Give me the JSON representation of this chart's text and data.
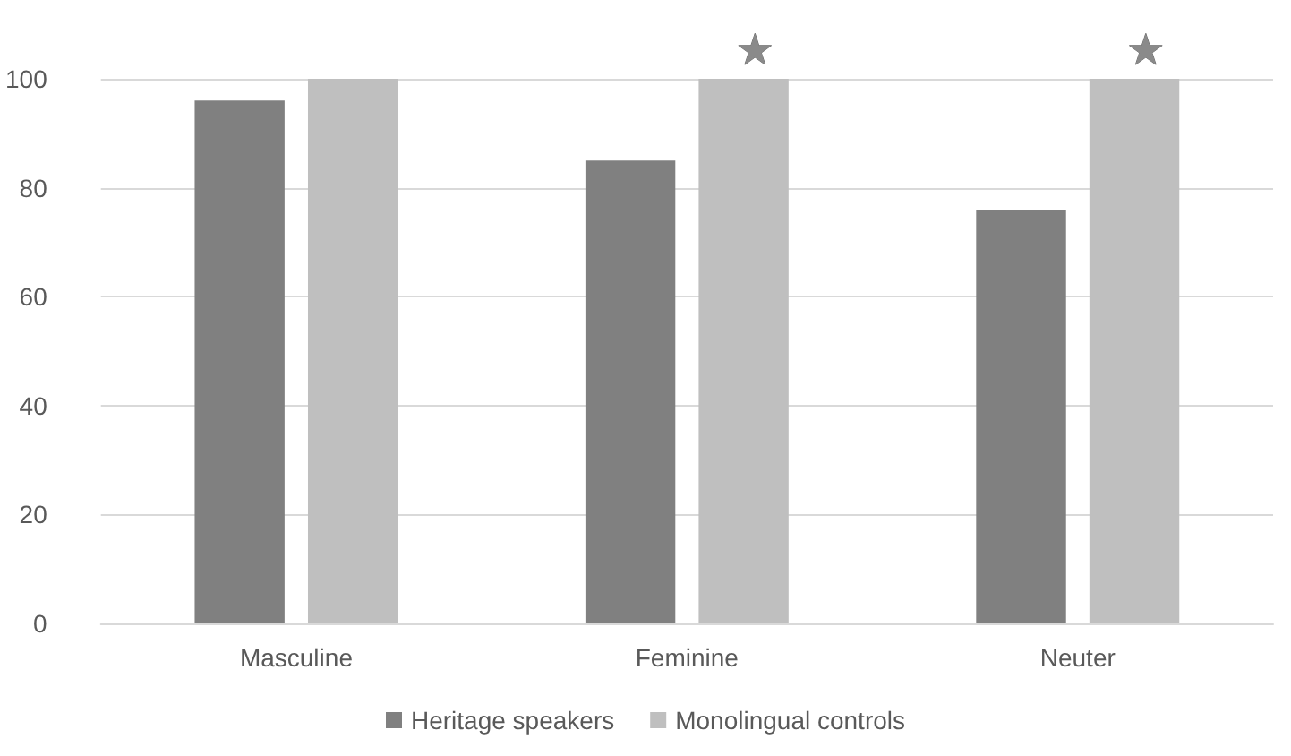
{
  "chart_data": {
    "type": "bar",
    "categories": [
      "Masculine",
      "Feminine",
      "Neuter"
    ],
    "series": [
      {
        "name": "Heritage speakers",
        "color": "#808080",
        "values": [
          96,
          85,
          76
        ]
      },
      {
        "name": "Monolingual controls",
        "color": "#bfbfbf",
        "values": [
          100,
          100,
          100
        ]
      }
    ],
    "ylim": [
      0,
      100
    ],
    "yticks": [
      0,
      20,
      40,
      60,
      80,
      100
    ],
    "grid": "y",
    "legend": "bottom",
    "annotations": [
      "★",
      "★"
    ]
  }
}
